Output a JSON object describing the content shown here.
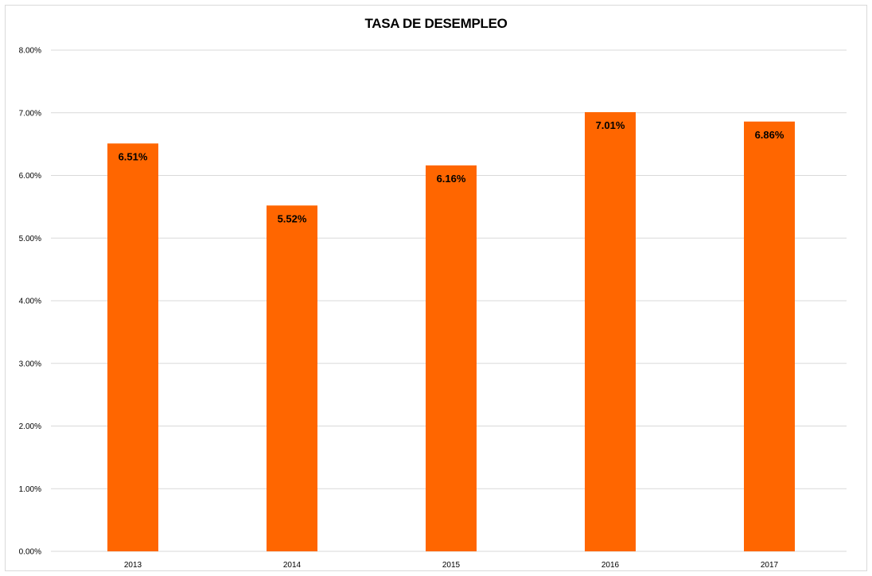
{
  "chart_data": {
    "type": "bar",
    "title": "TASA DE DESEMPLEO",
    "xlabel": "",
    "ylabel": "",
    "categories": [
      "2013",
      "2014",
      "2015",
      "2016",
      "2017"
    ],
    "values": [
      6.51,
      5.52,
      6.16,
      7.01,
      6.86
    ],
    "data_labels": [
      "6.51%",
      "5.52%",
      "6.16%",
      "7.01%",
      "6.86%"
    ],
    "ylim": [
      0,
      8
    ],
    "y_ticks": [
      0,
      1,
      2,
      3,
      4,
      5,
      6,
      7,
      8
    ],
    "y_tick_labels": [
      "0.00%",
      "1.00%",
      "2.00%",
      "3.00%",
      "4.00%",
      "5.00%",
      "6.00%",
      "7.00%",
      "8.00%"
    ],
    "bar_color": "#ff6600",
    "gridline_color": "#d9d9d9",
    "grid": true,
    "legend": "none"
  }
}
